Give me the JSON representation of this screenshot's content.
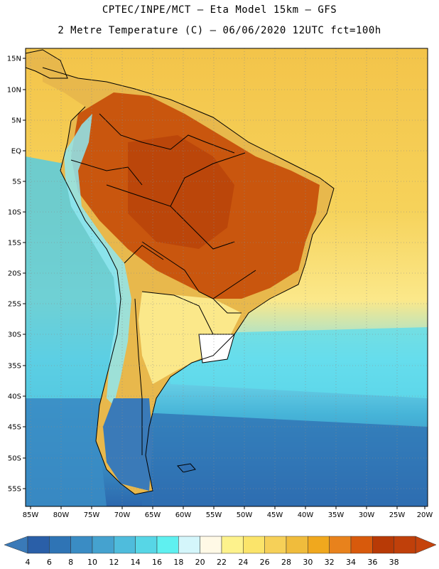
{
  "title": {
    "line1": "CPTEC/INPE/MCT –   Eta Model 15km – GFS",
    "line2": "2 Metre Temperature (C) – 06/06/2020 12UTC fct=100h"
  },
  "map": {
    "lat_labels": [
      "15N",
      "10N",
      "5N",
      "EQ",
      "5S",
      "10S",
      "15S",
      "20S",
      "25S",
      "30S",
      "35S",
      "40S",
      "45S",
      "50S",
      "55S"
    ],
    "lon_labels": [
      "85W",
      "80W",
      "75W",
      "70W",
      "65W",
      "60W",
      "55W",
      "50W",
      "45W",
      "40W",
      "35W",
      "30W",
      "25W",
      "20W"
    ]
  },
  "colorbar": {
    "labels": [
      "4",
      "6",
      "8",
      "10",
      "12",
      "14",
      "16",
      "18",
      "20",
      "22",
      "24",
      "26",
      "28",
      "30",
      "32",
      "34",
      "36",
      "38"
    ],
    "colors": [
      "#2a5fa8",
      "#2f74b5",
      "#3a8cc4",
      "#45a2cf",
      "#4fbcdc",
      "#57d6e6",
      "#5ff0f0",
      "#d4f6fb",
      "#fff9e6",
      "#fdf28c",
      "#fbe46a",
      "#f6d058",
      "#f0bc3c",
      "#f0a81e",
      "#e8821c",
      "#d85a0c",
      "#b83a06",
      "#c0400a"
    ],
    "low_color": "#3a7ab8",
    "high_color": "#c5430c"
  },
  "legend_icons": [
    "arrow-left-icon",
    "arrow-right-icon"
  ]
}
